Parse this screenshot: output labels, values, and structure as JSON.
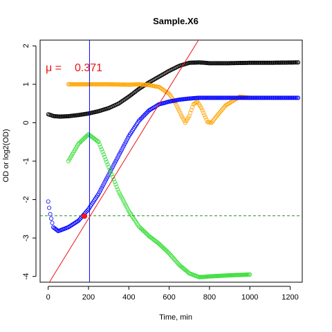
{
  "chart_data": {
    "type": "scatter",
    "title": "Sample.X6",
    "xlabel": "Time, min",
    "ylabel": "OD or log2(OD)",
    "xlim": [
      -40,
      1260
    ],
    "ylim": [
      -4.15,
      2.15
    ],
    "x_ticks": [
      0,
      200,
      400,
      600,
      800,
      1000,
      1200
    ],
    "y_ticks": [
      -4,
      -3,
      -2,
      -1,
      0,
      1,
      2
    ],
    "grid": false,
    "annotation": {
      "label": "μ =",
      "value": "0.371",
      "color": "#ee1111"
    },
    "vline_x": 205,
    "hline_y": -2.42,
    "fit_line": {
      "slope": 0.00852,
      "intercept": -4.2,
      "color": "#ee1111"
    },
    "highlight_point": {
      "x": 180,
      "y": -2.43,
      "color": "#ff1111"
    },
    "series": [
      {
        "color": "#000000",
        "points": [
          [
            0,
            0.22
          ],
          [
            30,
            0.17
          ],
          [
            60,
            0.16
          ],
          [
            100,
            0.17
          ],
          [
            150,
            0.2
          ],
          [
            200,
            0.24
          ],
          [
            250,
            0.3
          ],
          [
            300,
            0.38
          ],
          [
            350,
            0.5
          ],
          [
            400,
            0.68
          ],
          [
            450,
            0.88
          ],
          [
            500,
            1.05
          ],
          [
            550,
            1.2
          ],
          [
            600,
            1.35
          ],
          [
            650,
            1.48
          ],
          [
            700,
            1.56
          ],
          [
            750,
            1.57
          ],
          [
            800,
            1.55
          ],
          [
            900,
            1.55
          ],
          [
            1000,
            1.56
          ],
          [
            1100,
            1.56
          ],
          [
            1240,
            1.57
          ]
        ]
      },
      {
        "color": "#ffa500",
        "points": [
          [
            100,
            1.0
          ],
          [
            200,
            1.0
          ],
          [
            300,
            1.0
          ],
          [
            400,
            0.99
          ],
          [
            450,
            1.0
          ],
          [
            500,
            0.98
          ],
          [
            550,
            0.93
          ],
          [
            600,
            0.75
          ],
          [
            630,
            0.52
          ],
          [
            660,
            0.2
          ],
          [
            680,
            0.0
          ],
          [
            700,
            0.18
          ],
          [
            720,
            0.48
          ],
          [
            740,
            0.55
          ],
          [
            760,
            0.38
          ],
          [
            790,
            0.02
          ],
          [
            810,
            0.0
          ],
          [
            840,
            0.2
          ],
          [
            880,
            0.45
          ],
          [
            920,
            0.58
          ],
          [
            950,
            0.68
          ],
          [
            980,
            0.66
          ],
          [
            1000,
            0.65
          ]
        ]
      },
      {
        "color": "#0000ff",
        "points": [
          [
            0,
            -2.05
          ],
          [
            10,
            -2.38
          ],
          [
            25,
            -2.72
          ],
          [
            50,
            -2.82
          ],
          [
            100,
            -2.72
          ],
          [
            150,
            -2.55
          ],
          [
            200,
            -2.25
          ],
          [
            250,
            -1.85
          ],
          [
            300,
            -1.35
          ],
          [
            350,
            -0.85
          ],
          [
            400,
            -0.35
          ],
          [
            450,
            0.05
          ],
          [
            500,
            0.32
          ],
          [
            550,
            0.48
          ],
          [
            600,
            0.55
          ],
          [
            650,
            0.6
          ],
          [
            700,
            0.63
          ],
          [
            750,
            0.65
          ],
          [
            800,
            0.65
          ],
          [
            900,
            0.65
          ],
          [
            1000,
            0.65
          ],
          [
            1100,
            0.65
          ],
          [
            1240,
            0.65
          ]
        ]
      },
      {
        "color": "#33dd33",
        "points": [
          [
            100,
            -1.0
          ],
          [
            150,
            -0.55
          ],
          [
            200,
            -0.3
          ],
          [
            250,
            -0.5
          ],
          [
            300,
            -1.15
          ],
          [
            350,
            -1.8
          ],
          [
            400,
            -2.3
          ],
          [
            450,
            -2.7
          ],
          [
            500,
            -2.95
          ],
          [
            550,
            -3.15
          ],
          [
            600,
            -3.4
          ],
          [
            650,
            -3.7
          ],
          [
            700,
            -3.92
          ],
          [
            750,
            -4.02
          ],
          [
            800,
            -4.0
          ],
          [
            900,
            -3.97
          ],
          [
            1000,
            -3.95
          ]
        ]
      }
    ]
  }
}
